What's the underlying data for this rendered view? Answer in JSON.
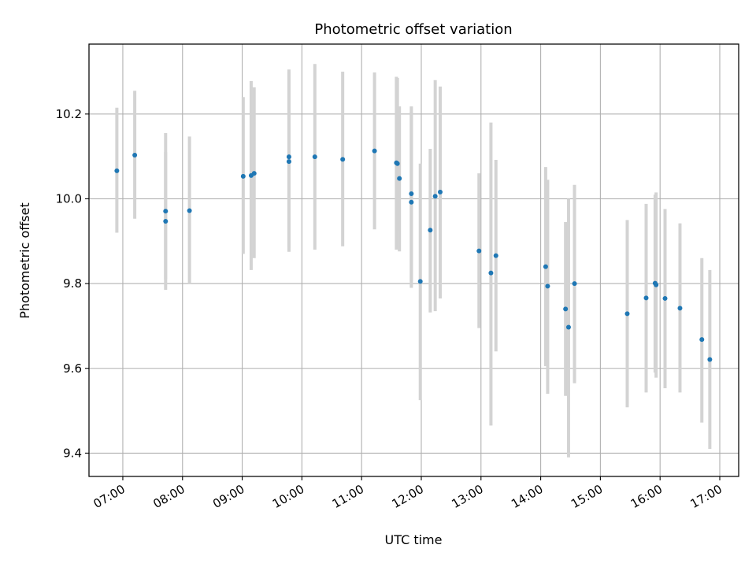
{
  "chart_data": {
    "type": "scatter",
    "title": "Photometric offset variation",
    "xlabel": "UTC time",
    "ylabel": "Photometric offset",
    "x_unit": "UTC time (HH:MM)",
    "xlim": [
      "06:26",
      "17:19"
    ],
    "ylim": [
      9.345,
      10.365
    ],
    "x_ticks": [
      "07:00",
      "08:00",
      "09:00",
      "10:00",
      "11:00",
      "12:00",
      "13:00",
      "14:00",
      "15:00",
      "16:00",
      "17:00"
    ],
    "y_ticks": [
      "9.4",
      "9.6",
      "9.8",
      "10.0",
      "10.2"
    ],
    "grid": true,
    "errorbars": true,
    "colors": {
      "points": "#1f77b4",
      "errorbars": "#d3d3d3",
      "grid": "#b0b0b0"
    },
    "points": [
      {
        "x": "06:54",
        "y": 10.066,
        "ylow": 9.92,
        "yhigh": 10.215
      },
      {
        "x": "07:12",
        "y": 10.103,
        "ylow": 9.953,
        "yhigh": 10.255
      },
      {
        "x": "07:43",
        "y": 9.971,
        "ylow": 9.81,
        "yhigh": 10.11
      },
      {
        "x": "07:43",
        "y": 9.947,
        "ylow": 9.785,
        "yhigh": 10.155
      },
      {
        "x": "08:07",
        "y": 9.972,
        "ylow": 9.8,
        "yhigh": 10.147
      },
      {
        "x": "09:01",
        "y": 10.053,
        "ylow": 9.87,
        "yhigh": 10.24
      },
      {
        "x": "09:09",
        "y": 10.055,
        "ylow": 9.832,
        "yhigh": 10.278
      },
      {
        "x": "09:12",
        "y": 10.06,
        "ylow": 9.86,
        "yhigh": 10.263
      },
      {
        "x": "09:47",
        "y": 10.088,
        "ylow": 9.875,
        "yhigh": 10.3
      },
      {
        "x": "09:47",
        "y": 10.099,
        "ylow": 9.885,
        "yhigh": 10.305
      },
      {
        "x": "10:13",
        "y": 10.099,
        "ylow": 9.88,
        "yhigh": 10.318
      },
      {
        "x": "10:41",
        "y": 10.093,
        "ylow": 9.888,
        "yhigh": 10.3
      },
      {
        "x": "11:13",
        "y": 10.113,
        "ylow": 9.928,
        "yhigh": 10.298
      },
      {
        "x": "11:35",
        "y": 10.085,
        "ylow": 9.88,
        "yhigh": 10.288
      },
      {
        "x": "11:36",
        "y": 10.083,
        "ylow": 9.925,
        "yhigh": 10.285
      },
      {
        "x": "11:38",
        "y": 10.048,
        "ylow": 9.876,
        "yhigh": 10.218
      },
      {
        "x": "11:50",
        "y": 9.992,
        "ylow": 9.79,
        "yhigh": 10.205
      },
      {
        "x": "11:50",
        "y": 10.012,
        "ylow": 9.805,
        "yhigh": 10.218
      },
      {
        "x": "11:59",
        "y": 9.805,
        "ylow": 9.525,
        "yhigh": 10.083
      },
      {
        "x": "12:09",
        "y": 9.926,
        "ylow": 9.732,
        "yhigh": 10.118
      },
      {
        "x": "12:14",
        "y": 10.006,
        "ylow": 9.735,
        "yhigh": 10.28
      },
      {
        "x": "12:19",
        "y": 10.016,
        "ylow": 9.765,
        "yhigh": 10.265
      },
      {
        "x": "12:58",
        "y": 9.877,
        "ylow": 9.695,
        "yhigh": 10.06
      },
      {
        "x": "13:10",
        "y": 9.825,
        "ylow": 9.465,
        "yhigh": 10.18
      },
      {
        "x": "13:15",
        "y": 9.866,
        "ylow": 9.64,
        "yhigh": 10.092
      },
      {
        "x": "14:05",
        "y": 9.84,
        "ylow": 9.605,
        "yhigh": 10.075
      },
      {
        "x": "14:07",
        "y": 9.794,
        "ylow": 9.54,
        "yhigh": 10.045
      },
      {
        "x": "14:25",
        "y": 9.74,
        "ylow": 9.535,
        "yhigh": 9.945
      },
      {
        "x": "14:28",
        "y": 9.697,
        "ylow": 9.39,
        "yhigh": 10.0
      },
      {
        "x": "14:34",
        "y": 9.8,
        "ylow": 9.565,
        "yhigh": 10.033
      },
      {
        "x": "15:27",
        "y": 9.729,
        "ylow": 9.508,
        "yhigh": 9.95
      },
      {
        "x": "15:46",
        "y": 9.766,
        "ylow": 9.543,
        "yhigh": 9.988
      },
      {
        "x": "15:55",
        "y": 9.801,
        "ylow": 9.59,
        "yhigh": 10.01
      },
      {
        "x": "15:56",
        "y": 9.797,
        "ylow": 9.578,
        "yhigh": 10.015
      },
      {
        "x": "16:05",
        "y": 9.765,
        "ylow": 9.553,
        "yhigh": 9.976
      },
      {
        "x": "16:20",
        "y": 9.742,
        "ylow": 9.543,
        "yhigh": 9.942
      },
      {
        "x": "16:42",
        "y": 9.668,
        "ylow": 9.472,
        "yhigh": 9.86
      },
      {
        "x": "16:50",
        "y": 9.621,
        "ylow": 9.41,
        "yhigh": 9.832
      }
    ]
  }
}
